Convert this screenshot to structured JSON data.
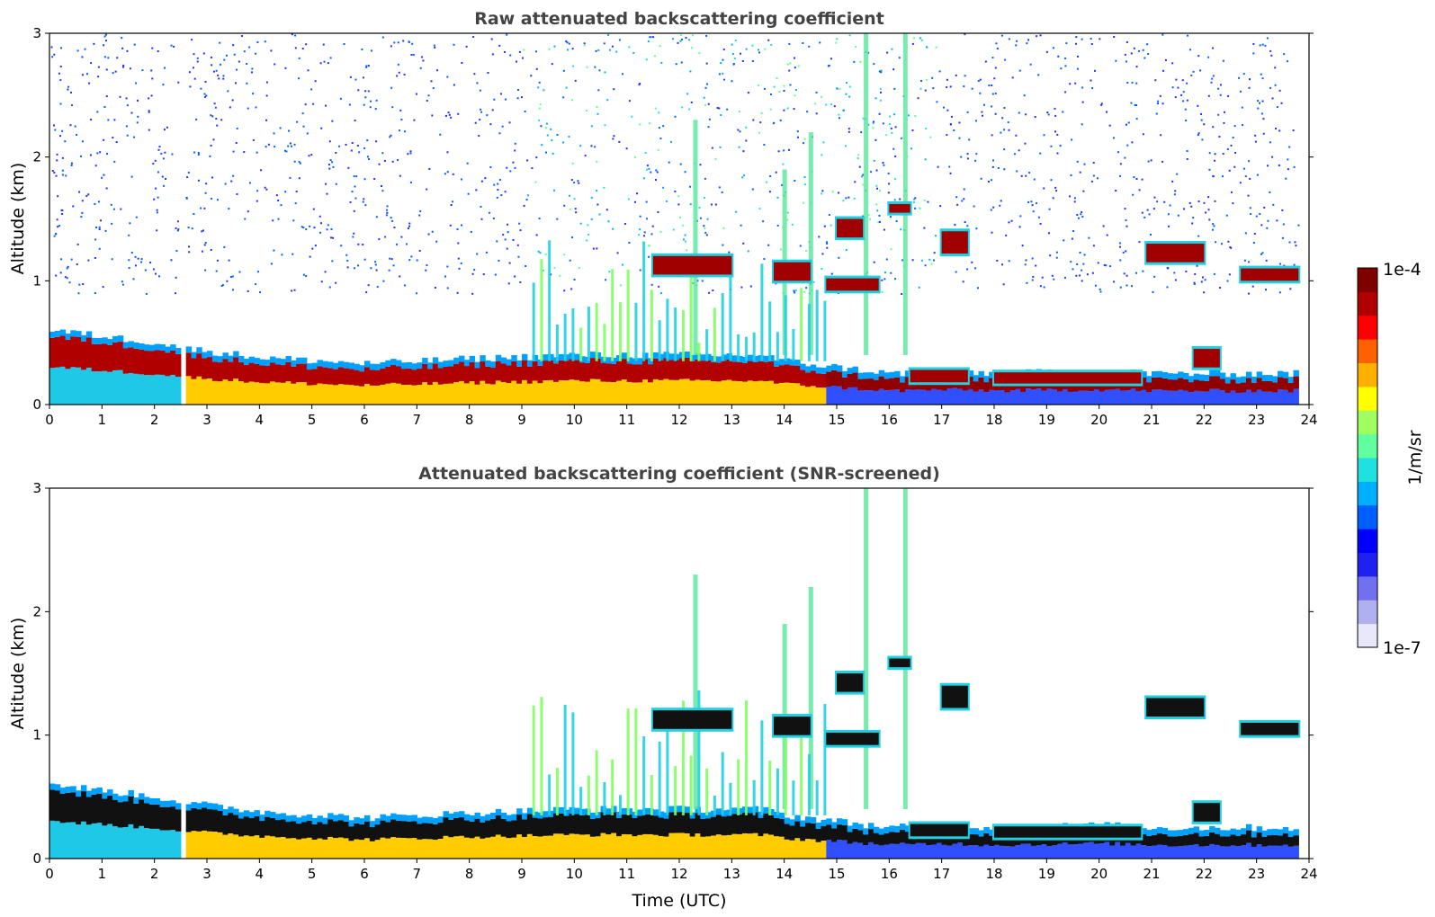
{
  "chart_data": [
    {
      "type": "heatmap",
      "title": "Raw attenuated backscattering coefficient",
      "xlabel": "",
      "ylabel": "Altitude (km)",
      "xlim": [
        0,
        24
      ],
      "ylim": [
        0,
        3
      ],
      "xticks": [
        "0",
        "1",
        "2",
        "3",
        "4",
        "5",
        "6",
        "7",
        "8",
        "9",
        "10",
        "11",
        "12",
        "13",
        "14",
        "15",
        "16",
        "17",
        "18",
        "19",
        "20",
        "21",
        "22",
        "23",
        "24"
      ],
      "yticks": [
        "0",
        "1",
        "2",
        "3"
      ],
      "screened": false
    },
    {
      "type": "heatmap",
      "title": "Attenuated backscattering coefficient (SNR-screened)",
      "xlabel": "Time (UTC)",
      "ylabel": "Altitude (km)",
      "xlim": [
        0,
        24
      ],
      "ylim": [
        0,
        3
      ],
      "xticks": [
        "0",
        "1",
        "2",
        "3",
        "4",
        "5",
        "6",
        "7",
        "8",
        "9",
        "10",
        "11",
        "12",
        "13",
        "14",
        "15",
        "16",
        "17",
        "18",
        "19",
        "20",
        "21",
        "22",
        "23",
        "24"
      ],
      "yticks": [
        "0",
        "1",
        "2",
        "3"
      ],
      "screened": true
    }
  ],
  "colorbar": {
    "label": "1/m/sr",
    "max_label": "1e-4",
    "min_label": "1e-7",
    "colors": [
      "#e8e8fa",
      "#b0b0f0",
      "#7070f0",
      "#2020f0",
      "#0000ff",
      "#0060ff",
      "#00b0ff",
      "#20e0e0",
      "#60ffa0",
      "#a0ff60",
      "#ffff00",
      "#ffb000",
      "#ff6000",
      "#ff0000",
      "#b00000",
      "#800000"
    ]
  },
  "structures": {
    "gap": [
      2.45,
      2.58
    ],
    "boundary_layer_top": [
      [
        0,
        0.55
      ],
      [
        1,
        0.5
      ],
      [
        2,
        0.45
      ],
      [
        2.6,
        0.4
      ],
      [
        4,
        0.33
      ],
      [
        6,
        0.28
      ],
      [
        8,
        0.32
      ],
      [
        10,
        0.35
      ],
      [
        12,
        0.35
      ],
      [
        13.5,
        0.35
      ],
      [
        14,
        0.3
      ],
      [
        15,
        0.25
      ],
      [
        16,
        0.2
      ],
      [
        17,
        0.22
      ],
      [
        18,
        0.2
      ],
      [
        20,
        0.22
      ],
      [
        21,
        0.2
      ],
      [
        24,
        0.2
      ]
    ],
    "clouds": [
      {
        "t0": 11.5,
        "t1": 13.0,
        "base": 1.05,
        "top": 1.2
      },
      {
        "t0": 13.8,
        "t1": 14.5,
        "base": 1.0,
        "top": 1.15
      },
      {
        "t0": 14.8,
        "t1": 15.8,
        "base": 0.92,
        "top": 1.02
      },
      {
        "t0": 15.0,
        "t1": 15.5,
        "base": 1.35,
        "top": 1.5
      },
      {
        "t0": 16.0,
        "t1": 16.4,
        "base": 1.55,
        "top": 1.62
      },
      {
        "t0": 17.0,
        "t1": 17.5,
        "base": 1.22,
        "top": 1.4
      },
      {
        "t0": 20.9,
        "t1": 22.0,
        "base": 1.15,
        "top": 1.3
      },
      {
        "t0": 22.7,
        "t1": 23.8,
        "base": 1.0,
        "top": 1.1
      },
      {
        "t0": 16.4,
        "t1": 17.5,
        "base": 0.18,
        "top": 0.28
      },
      {
        "t0": 18.0,
        "t1": 20.8,
        "base": 0.17,
        "top": 0.26
      },
      {
        "t0": 21.8,
        "t1": 22.3,
        "base": 0.3,
        "top": 0.45
      }
    ],
    "plumes": [
      {
        "t": 12.3,
        "top": 2.3
      },
      {
        "t": 14.0,
        "top": 1.9
      },
      {
        "t": 14.5,
        "top": 2.2
      },
      {
        "t": 15.55,
        "top": 3.0
      },
      {
        "t": 16.3,
        "top": 3.0
      }
    ]
  }
}
